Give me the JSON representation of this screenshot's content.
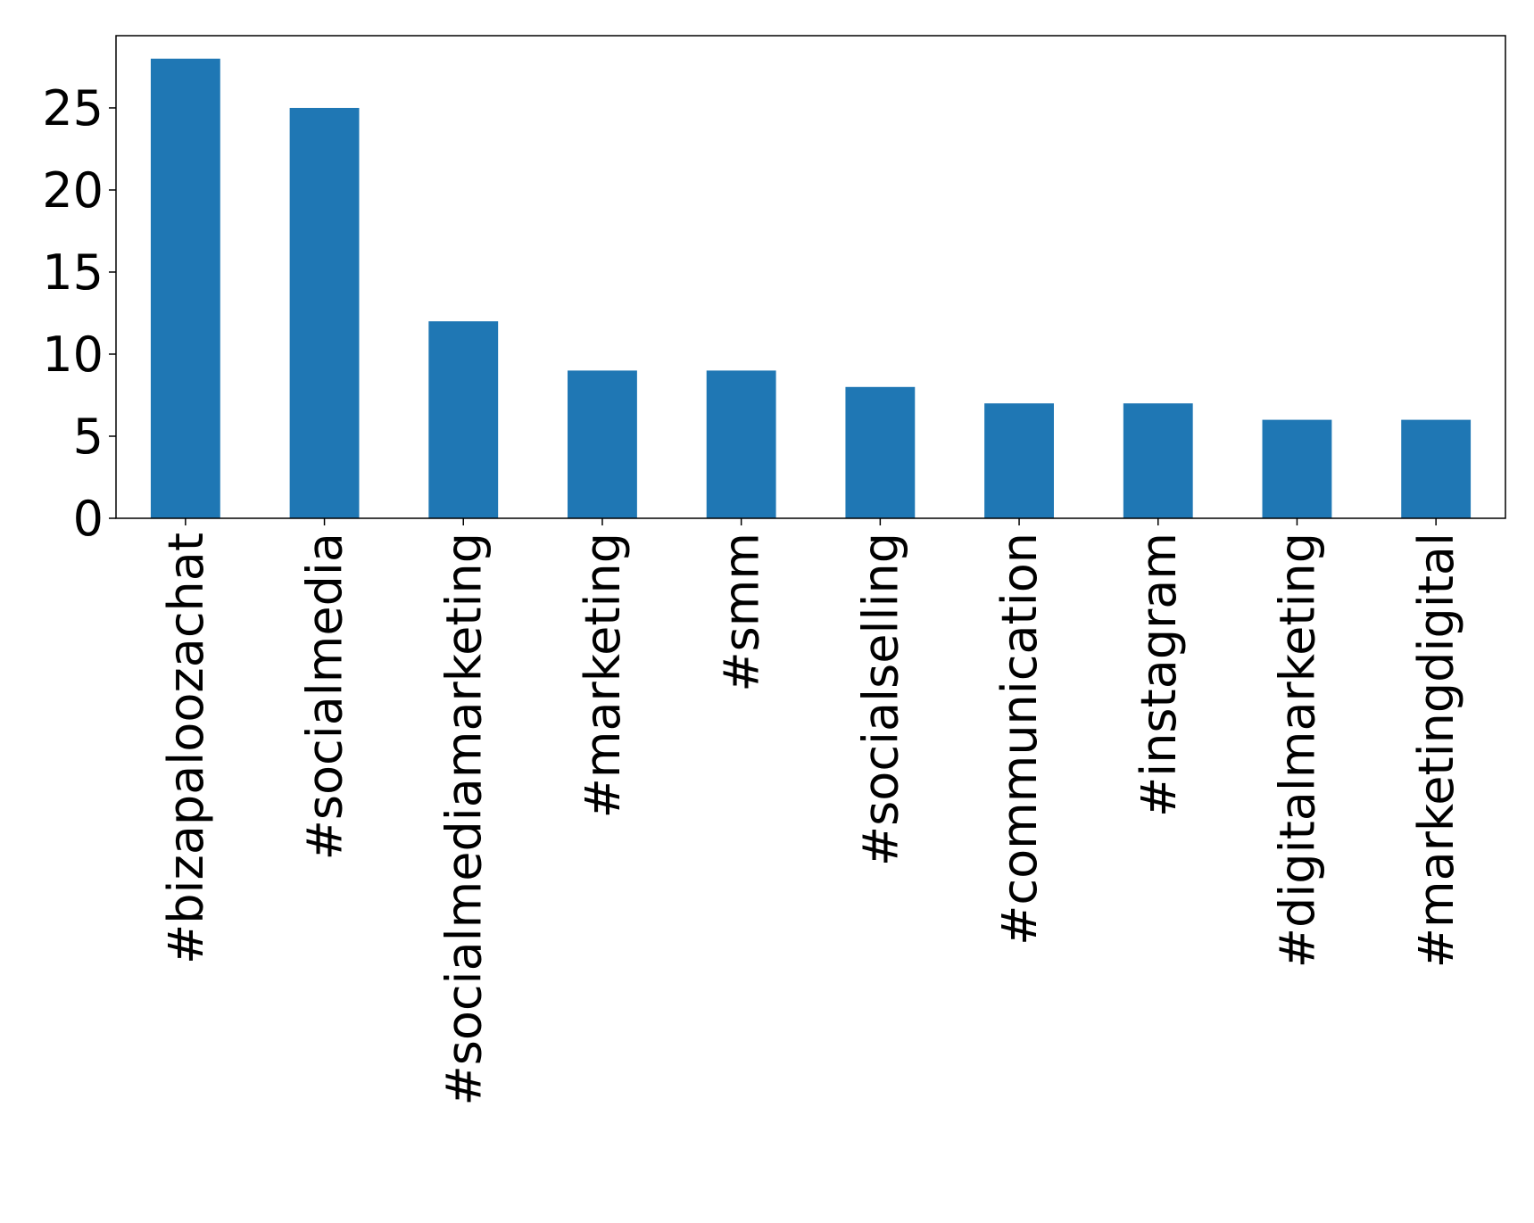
{
  "chart_data": {
    "type": "bar",
    "categories": [
      "#bizapaloozachat",
      "#socialmedia",
      "#socialmediamarketing",
      "#marketing",
      "#smm",
      "#socialselling",
      "#communication",
      "#instagram",
      "#digitalmarketing",
      "#marketingdigital"
    ],
    "values": [
      28,
      25,
      12,
      9,
      9,
      8,
      7,
      7,
      6,
      6
    ],
    "color": "#1f77b4",
    "ylim": [
      0,
      29.4
    ],
    "yticks": [
      0,
      5,
      10,
      15,
      20,
      25
    ],
    "grid": false
  }
}
